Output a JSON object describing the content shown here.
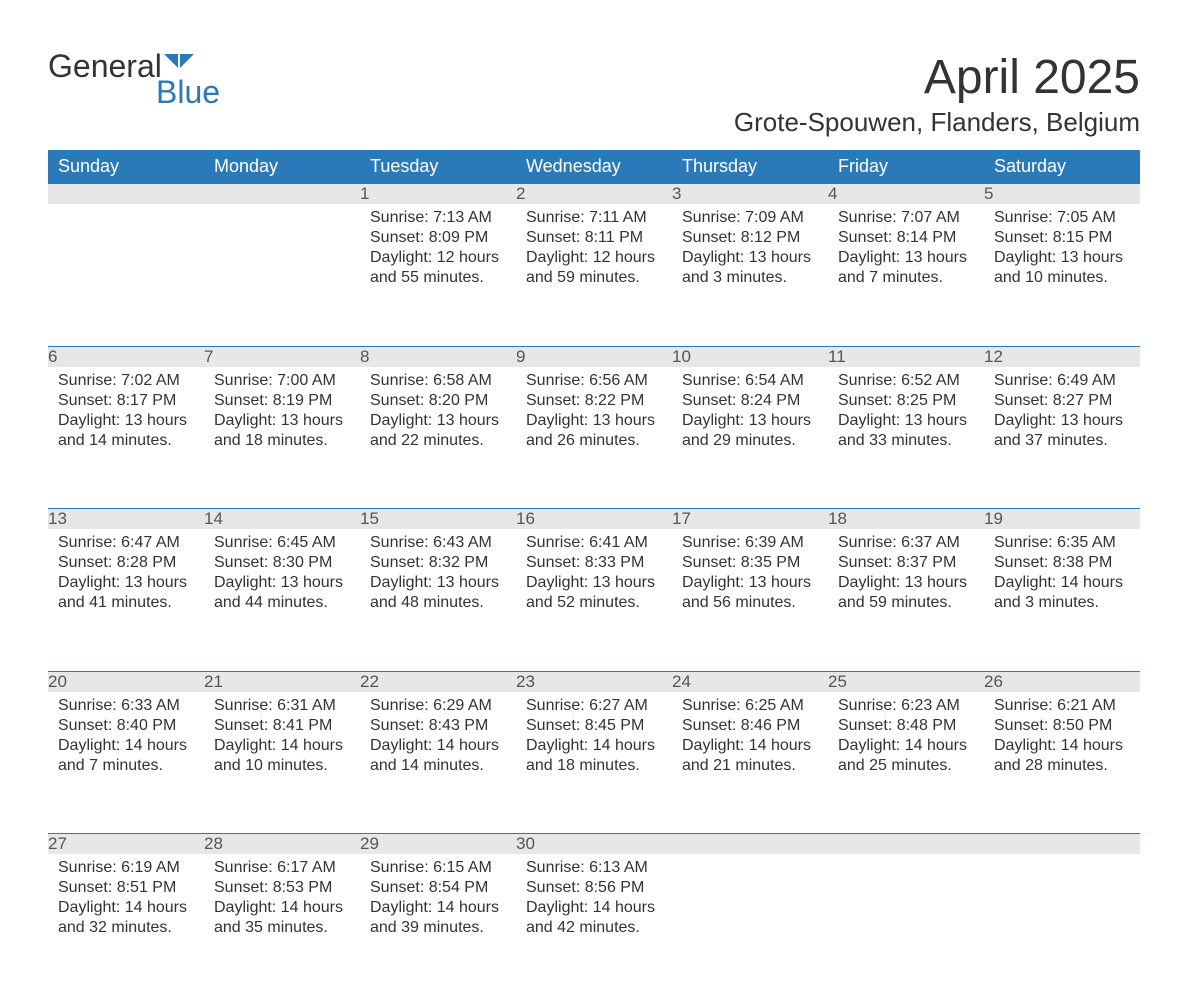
{
  "brand": {
    "part1": "General",
    "part2": "Blue",
    "color1": "#333333",
    "color2": "#2a7ab9"
  },
  "title": "April 2025",
  "location": "Grote-Spouwen, Flanders, Belgium",
  "header_bg": "#2a7ab9",
  "header_fg": "#ffffff",
  "daynum_bg": "#e7e7e7",
  "text_color": "#333333",
  "weekdays": [
    "Sunday",
    "Monday",
    "Tuesday",
    "Wednesday",
    "Thursday",
    "Friday",
    "Saturday"
  ],
  "weeks": [
    [
      null,
      null,
      {
        "d": "1",
        "sr": "7:13 AM",
        "ss": "8:09 PM",
        "dh": "12",
        "dm": "55"
      },
      {
        "d": "2",
        "sr": "7:11 AM",
        "ss": "8:11 PM",
        "dh": "12",
        "dm": "59"
      },
      {
        "d": "3",
        "sr": "7:09 AM",
        "ss": "8:12 PM",
        "dh": "13",
        "dm": "3"
      },
      {
        "d": "4",
        "sr": "7:07 AM",
        "ss": "8:14 PM",
        "dh": "13",
        "dm": "7"
      },
      {
        "d": "5",
        "sr": "7:05 AM",
        "ss": "8:15 PM",
        "dh": "13",
        "dm": "10"
      }
    ],
    [
      {
        "d": "6",
        "sr": "7:02 AM",
        "ss": "8:17 PM",
        "dh": "13",
        "dm": "14"
      },
      {
        "d": "7",
        "sr": "7:00 AM",
        "ss": "8:19 PM",
        "dh": "13",
        "dm": "18"
      },
      {
        "d": "8",
        "sr": "6:58 AM",
        "ss": "8:20 PM",
        "dh": "13",
        "dm": "22"
      },
      {
        "d": "9",
        "sr": "6:56 AM",
        "ss": "8:22 PM",
        "dh": "13",
        "dm": "26"
      },
      {
        "d": "10",
        "sr": "6:54 AM",
        "ss": "8:24 PM",
        "dh": "13",
        "dm": "29"
      },
      {
        "d": "11",
        "sr": "6:52 AM",
        "ss": "8:25 PM",
        "dh": "13",
        "dm": "33"
      },
      {
        "d": "12",
        "sr": "6:49 AM",
        "ss": "8:27 PM",
        "dh": "13",
        "dm": "37"
      }
    ],
    [
      {
        "d": "13",
        "sr": "6:47 AM",
        "ss": "8:28 PM",
        "dh": "13",
        "dm": "41"
      },
      {
        "d": "14",
        "sr": "6:45 AM",
        "ss": "8:30 PM",
        "dh": "13",
        "dm": "44"
      },
      {
        "d": "15",
        "sr": "6:43 AM",
        "ss": "8:32 PM",
        "dh": "13",
        "dm": "48"
      },
      {
        "d": "16",
        "sr": "6:41 AM",
        "ss": "8:33 PM",
        "dh": "13",
        "dm": "52"
      },
      {
        "d": "17",
        "sr": "6:39 AM",
        "ss": "8:35 PM",
        "dh": "13",
        "dm": "56"
      },
      {
        "d": "18",
        "sr": "6:37 AM",
        "ss": "8:37 PM",
        "dh": "13",
        "dm": "59"
      },
      {
        "d": "19",
        "sr": "6:35 AM",
        "ss": "8:38 PM",
        "dh": "14",
        "dm": "3"
      }
    ],
    [
      {
        "d": "20",
        "sr": "6:33 AM",
        "ss": "8:40 PM",
        "dh": "14",
        "dm": "7"
      },
      {
        "d": "21",
        "sr": "6:31 AM",
        "ss": "8:41 PM",
        "dh": "14",
        "dm": "10"
      },
      {
        "d": "22",
        "sr": "6:29 AM",
        "ss": "8:43 PM",
        "dh": "14",
        "dm": "14"
      },
      {
        "d": "23",
        "sr": "6:27 AM",
        "ss": "8:45 PM",
        "dh": "14",
        "dm": "18"
      },
      {
        "d": "24",
        "sr": "6:25 AM",
        "ss": "8:46 PM",
        "dh": "14",
        "dm": "21"
      },
      {
        "d": "25",
        "sr": "6:23 AM",
        "ss": "8:48 PM",
        "dh": "14",
        "dm": "25"
      },
      {
        "d": "26",
        "sr": "6:21 AM",
        "ss": "8:50 PM",
        "dh": "14",
        "dm": "28"
      }
    ],
    [
      {
        "d": "27",
        "sr": "6:19 AM",
        "ss": "8:51 PM",
        "dh": "14",
        "dm": "32"
      },
      {
        "d": "28",
        "sr": "6:17 AM",
        "ss": "8:53 PM",
        "dh": "14",
        "dm": "35"
      },
      {
        "d": "29",
        "sr": "6:15 AM",
        "ss": "8:54 PM",
        "dh": "14",
        "dm": "39"
      },
      {
        "d": "30",
        "sr": "6:13 AM",
        "ss": "8:56 PM",
        "dh": "14",
        "dm": "42"
      },
      null,
      null,
      null
    ]
  ],
  "labels": {
    "sunrise": "Sunrise: ",
    "sunset": "Sunset: ",
    "daylight": "Daylight: ",
    "hours": " hours",
    "and": "and ",
    "minutes": " minutes."
  }
}
